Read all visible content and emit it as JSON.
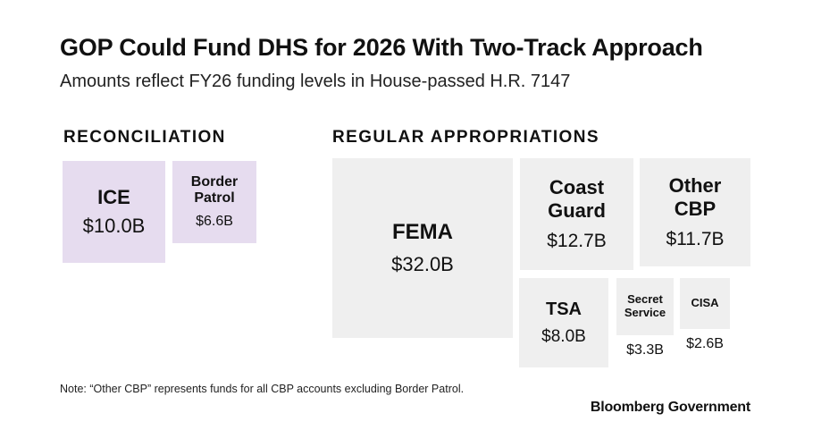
{
  "title": "GOP Could Fund DHS for 2026 With Two-Track Approach",
  "subtitle": "Amounts reflect FY26 funding levels in House-passed H.R. 7147",
  "note": "Note: “Other CBP” represents funds for all CBP accounts excluding Border Patrol.",
  "source": "Bloomberg Government",
  "colors": {
    "reconciliation": "#e6dcef",
    "regular": "#efefef"
  },
  "chart_data": {
    "type": "treemap",
    "unit": "$B",
    "groups": [
      {
        "name": "RECONCILIATION",
        "items": [
          {
            "label": "ICE",
            "value": 10.0,
            "value_label": "$10.0B"
          },
          {
            "label": "Border Patrol",
            "value": 6.6,
            "value_label": "$6.6B"
          }
        ]
      },
      {
        "name": "REGULAR APPROPRIATIONS",
        "items": [
          {
            "label": "FEMA",
            "value": 32.0,
            "value_label": "$32.0B"
          },
          {
            "label": "Coast Guard",
            "value": 12.7,
            "value_label": "$12.7B"
          },
          {
            "label": "Other CBP",
            "value": 11.7,
            "value_label": "$11.7B"
          },
          {
            "label": "TSA",
            "value": 8.0,
            "value_label": "$8.0B"
          },
          {
            "label": "Secret Service",
            "value": 3.3,
            "value_label": "$3.3B"
          },
          {
            "label": "CISA",
            "value": 2.6,
            "value_label": "$2.6B"
          }
        ]
      }
    ]
  }
}
